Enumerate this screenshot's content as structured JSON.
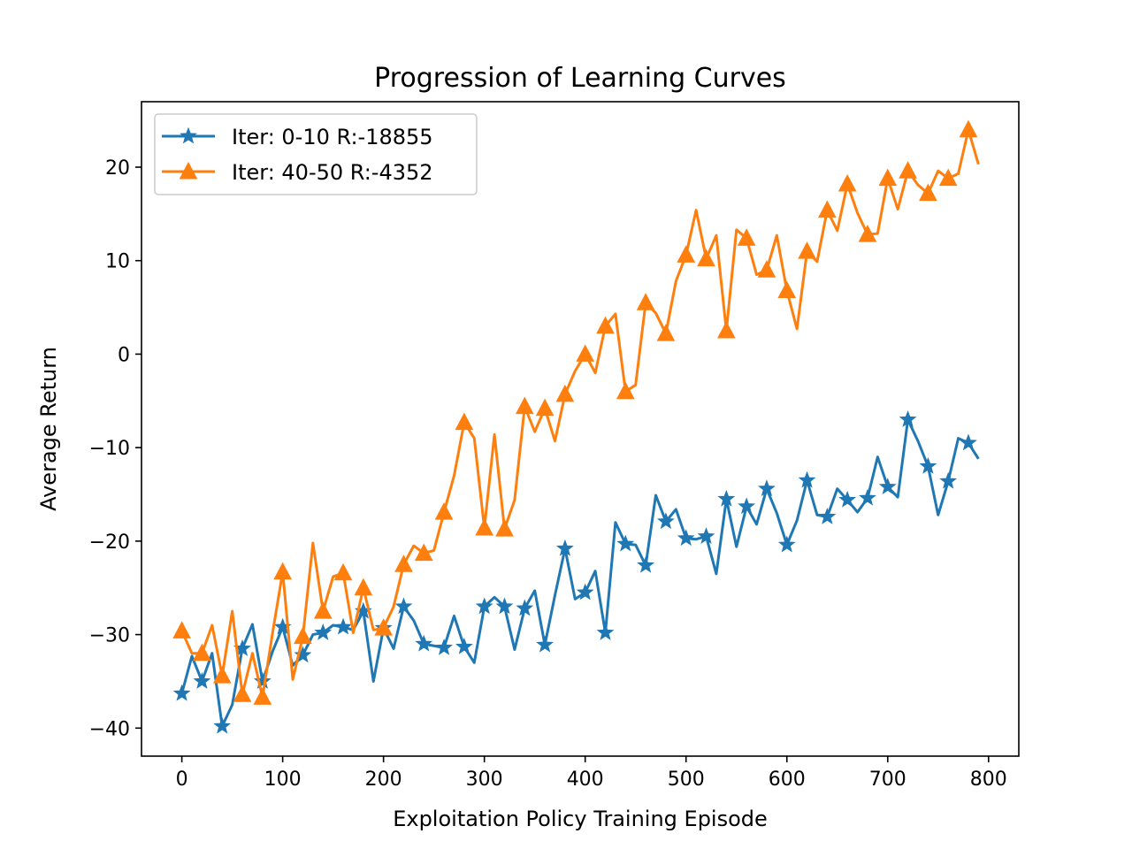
{
  "chart_data": {
    "type": "line",
    "title": "Progression of Learning Curves",
    "xlabel": "Exploitation Policy Training Episode",
    "ylabel": "Average Return",
    "xlim": [
      -40,
      830
    ],
    "ylim": [
      -43,
      27
    ],
    "xticks": [
      0,
      100,
      200,
      300,
      400,
      500,
      600,
      700,
      800
    ],
    "yticks": [
      -40,
      -30,
      -20,
      -10,
      0,
      10,
      20
    ],
    "legend_position": "top-left",
    "grid": false,
    "x": [
      0,
      10,
      20,
      30,
      40,
      50,
      60,
      70,
      80,
      90,
      100,
      110,
      120,
      130,
      140,
      150,
      160,
      170,
      180,
      190,
      200,
      210,
      220,
      230,
      240,
      250,
      260,
      270,
      280,
      290,
      300,
      310,
      320,
      330,
      340,
      350,
      360,
      370,
      380,
      390,
      400,
      410,
      420,
      430,
      440,
      450,
      460,
      470,
      480,
      490,
      500,
      510,
      520,
      530,
      540,
      550,
      560,
      570,
      580,
      590,
      600,
      610,
      620,
      630,
      640,
      650,
      660,
      670,
      680,
      690,
      700,
      710,
      720,
      730,
      740,
      750,
      760,
      770,
      780,
      790
    ],
    "series": [
      {
        "name": "Iter: 0-10 R:-18855",
        "color": "#1f77b4",
        "marker": "star",
        "marker_every": 2,
        "values": [
          -36.3,
          -32.3,
          -35.0,
          -32.0,
          -39.8,
          -37.5,
          -31.5,
          -28.9,
          -35.0,
          -31.8,
          -29.2,
          -33.3,
          -32.2,
          -30.0,
          -29.8,
          -29.0,
          -29.2,
          -29.5,
          -27.5,
          -35.0,
          -29.3,
          -31.5,
          -27.0,
          -28.5,
          -31.0,
          -31.2,
          -31.4,
          -28.0,
          -31.3,
          -33.0,
          -27.0,
          -26.0,
          -27.0,
          -31.6,
          -27.2,
          -25.3,
          -31.1,
          -25.8,
          -20.8,
          -26.2,
          -25.5,
          -23.2,
          -29.8,
          -18.0,
          -20.3,
          -20.4,
          -22.6,
          -15.1,
          -17.9,
          -16.6,
          -19.7,
          -19.8,
          -19.5,
          -23.5,
          -15.5,
          -20.6,
          -16.3,
          -18.2,
          -14.4,
          -17.0,
          -20.4,
          -17.8,
          -13.5,
          -17.2,
          -17.4,
          -14.4,
          -15.6,
          -16.9,
          -15.4,
          -11.0,
          -14.2,
          -15.3,
          -7.0,
          -9.3,
          -12.0,
          -17.2,
          -13.6,
          -9.0,
          -9.5,
          -11.2
        ]
      },
      {
        "name": "Iter: 40-50 R:-4352",
        "color": "#ff7f0e",
        "marker": "triangle",
        "marker_every": 2,
        "values": [
          -29.6,
          -32.0,
          -32.0,
          -29.0,
          -34.4,
          -27.5,
          -36.4,
          -32.0,
          -36.7,
          -29.8,
          -23.3,
          -34.8,
          -30.2,
          -20.2,
          -27.5,
          -23.8,
          -23.4,
          -29.8,
          -25.0,
          -29.5,
          -29.3,
          -27.0,
          -22.5,
          -20.5,
          -21.3,
          -21.0,
          -16.9,
          -13.0,
          -7.3,
          -9.0,
          -18.6,
          -8.6,
          -18.7,
          -15.6,
          -5.6,
          -8.3,
          -5.8,
          -9.3,
          -4.3,
          -1.8,
          0.0,
          -2.0,
          3.0,
          4.3,
          -4.0,
          -3.3,
          5.5,
          4.4,
          2.2,
          7.8,
          10.6,
          15.4,
          10.2,
          12.7,
          2.5,
          13.3,
          12.4,
          8.5,
          9.0,
          12.7,
          6.8,
          2.7,
          11.0,
          9.9,
          15.4,
          13.2,
          18.2,
          15.1,
          12.8,
          12.9,
          18.8,
          15.5,
          19.6,
          18.1,
          17.2,
          19.6,
          18.8,
          19.3,
          24.0,
          20.3
        ]
      }
    ]
  }
}
